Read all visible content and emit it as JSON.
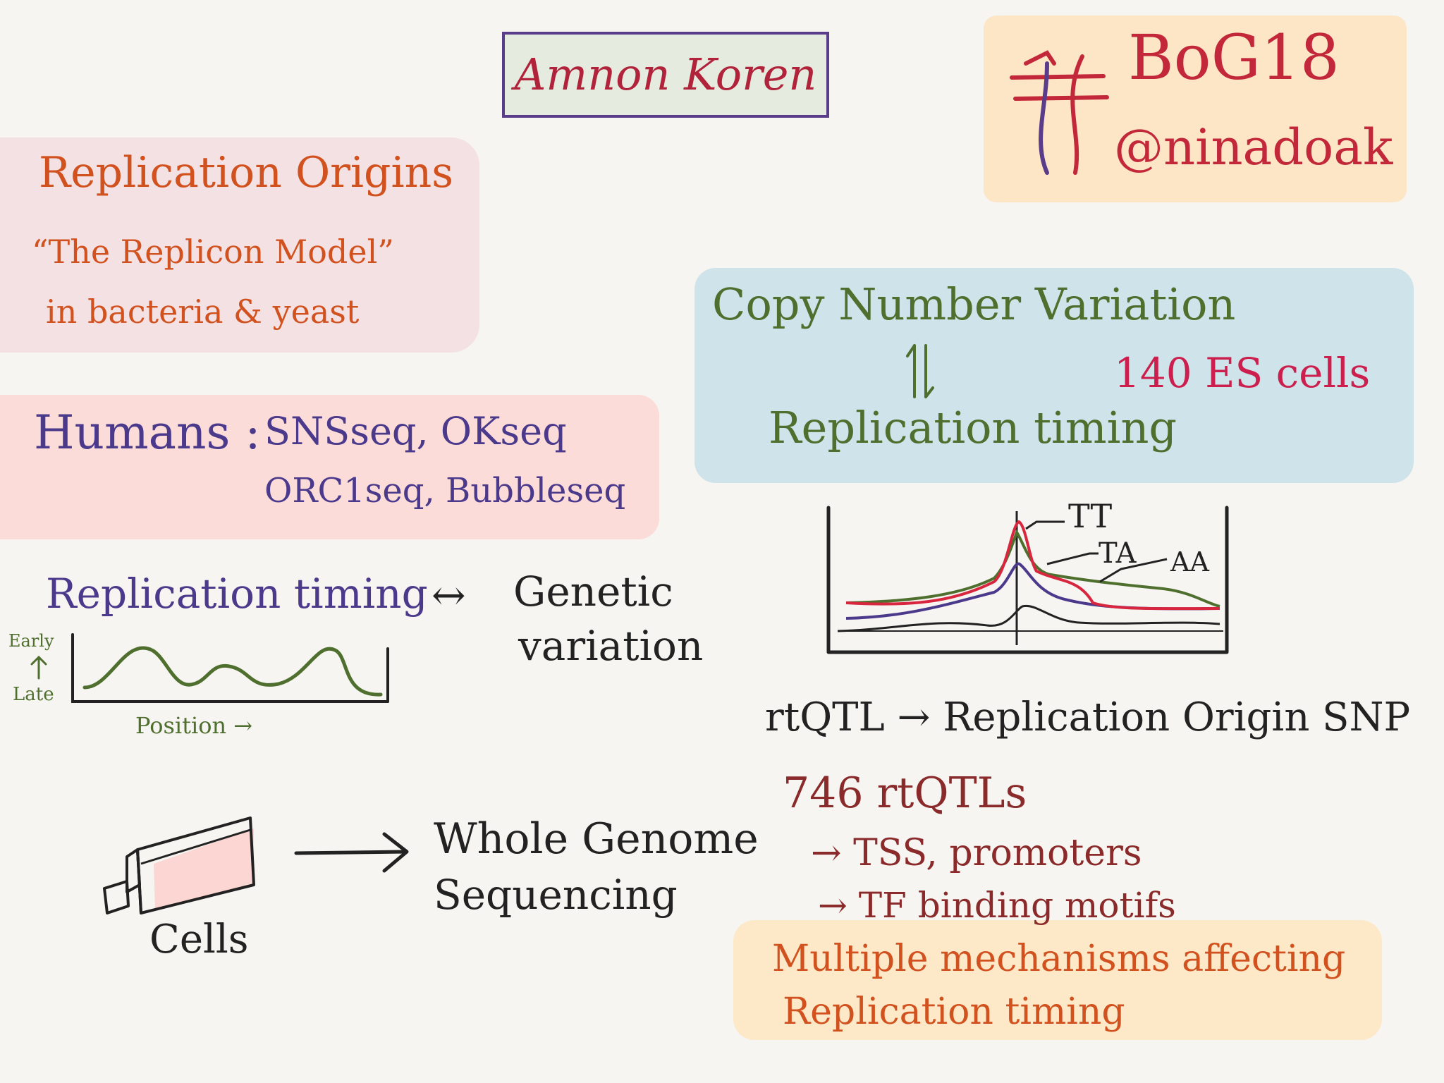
{
  "speaker": "Amnon Koren",
  "tag": {
    "hashtag": "BoG18",
    "handle": "@ninadoak"
  },
  "origins": {
    "title": "Replication Origins",
    "line1": "“The Replicon Model”",
    "line2": "in bacteria & yeast"
  },
  "humans": {
    "label": "Humans :",
    "methods1": "SNSseq, OKseq",
    "methods2": "ORC1seq, Bubbleseq"
  },
  "timing_genetic": {
    "left": "Replication timing",
    "arrow": "↔",
    "right1": "Genetic",
    "right2": "variation"
  },
  "timing_plot": {
    "early": "Early",
    "late": "Late",
    "position": "Position →"
  },
  "cnv": {
    "line1": "Copy Number Variation",
    "line2": "Replication timing",
    "cells": "140 ES cells"
  },
  "peak_plot": {
    "labels": [
      "TT",
      "TA",
      "AA"
    ],
    "colors": {
      "TT": "#d8263f",
      "TA": "#4b3a8c",
      "AA": "#4f6f2e",
      "baseline": "#222222"
    }
  },
  "rtqtl": {
    "line": "rtQTL → Replication Origin SNP",
    "count": "746 rtQTLs",
    "item1": "→ TSS, promoters",
    "item2": "→ TF binding motifs"
  },
  "sequencing": {
    "cells": "Cells",
    "result1": "Whole Genome",
    "result2": "Sequencing"
  },
  "multiple": {
    "line1": "Multiple mechanisms affecting",
    "line2": "Replication timing"
  }
}
